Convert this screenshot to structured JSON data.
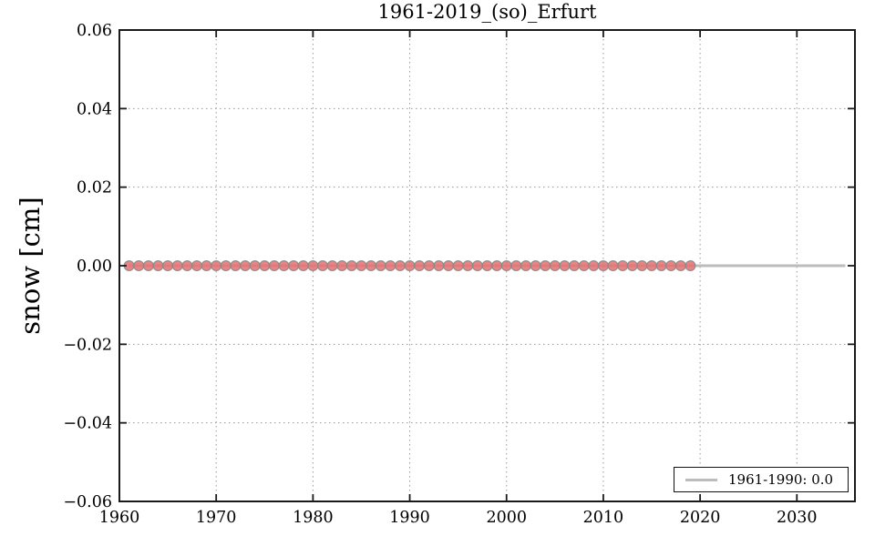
{
  "figure": {
    "background": "#ffffff"
  },
  "chart_data": {
    "type": "scatter",
    "title": "1961-2019_(so)_Erfurt",
    "xlabel": "",
    "ylabel": "snow [cm]",
    "xlim": [
      1960,
      2036
    ],
    "ylim": [
      -0.06,
      0.06
    ],
    "x_ticks": [
      1960,
      1970,
      1980,
      1990,
      2000,
      2010,
      2020,
      2030
    ],
    "x_tick_labels": [
      "1960",
      "1970",
      "1980",
      "1990",
      "2000",
      "2010",
      "2020",
      "2030"
    ],
    "y_ticks": [
      0.06,
      0.04,
      0.02,
      0.0,
      -0.02,
      -0.04,
      -0.06
    ],
    "y_tick_labels": [
      "0.06",
      "0.04",
      "0.02",
      "0.00",
      "−0.02",
      "−0.04",
      "−0.06"
    ],
    "grid": {
      "visible": true,
      "style": "dotted",
      "color": "#999999"
    },
    "series": [
      {
        "name": "reference-line-1961-1990-mean",
        "type": "line",
        "color": "#bcbcbc",
        "linewidth": 3,
        "x": [
          1961,
          2035
        ],
        "y": [
          0.0,
          0.0
        ]
      },
      {
        "name": "annual-snow-values",
        "type": "scatter",
        "marker": "circle",
        "fill_color": "#e57070",
        "edge_color": "#8a8a8a",
        "x": [
          1961,
          1962,
          1963,
          1964,
          1965,
          1966,
          1967,
          1968,
          1969,
          1970,
          1971,
          1972,
          1973,
          1974,
          1975,
          1976,
          1977,
          1978,
          1979,
          1980,
          1981,
          1982,
          1983,
          1984,
          1985,
          1986,
          1987,
          1988,
          1989,
          1990,
          1991,
          1992,
          1993,
          1994,
          1995,
          1996,
          1997,
          1998,
          1999,
          2000,
          2001,
          2002,
          2003,
          2004,
          2005,
          2006,
          2007,
          2008,
          2009,
          2010,
          2011,
          2012,
          2013,
          2014,
          2015,
          2016,
          2017,
          2018,
          2019
        ],
        "y": [
          0.0,
          0.0,
          0.0,
          0.0,
          0.0,
          0.0,
          0.0,
          0.0,
          0.0,
          0.0,
          0.0,
          0.0,
          0.0,
          0.0,
          0.0,
          0.0,
          0.0,
          0.0,
          0.0,
          0.0,
          0.0,
          0.0,
          0.0,
          0.0,
          0.0,
          0.0,
          0.0,
          0.0,
          0.0,
          0.0,
          0.0,
          0.0,
          0.0,
          0.0,
          0.0,
          0.0,
          0.0,
          0.0,
          0.0,
          0.0,
          0.0,
          0.0,
          0.0,
          0.0,
          0.0,
          0.0,
          0.0,
          0.0,
          0.0,
          0.0,
          0.0,
          0.0,
          0.0,
          0.0,
          0.0,
          0.0,
          0.0,
          0.0,
          0.0
        ]
      }
    ],
    "legend": {
      "position": "lower right",
      "entries": [
        {
          "label": "1961-1990: 0.0",
          "color": "#bcbcbc",
          "type": "line"
        }
      ]
    },
    "colors": {
      "spine": "#1a1a1a",
      "tick": "#1a1a1a",
      "grid": "#999999",
      "scatter_fill": "#e57070",
      "scatter_edge": "#8a8a8a",
      "reference_line": "#bcbcbc"
    }
  }
}
